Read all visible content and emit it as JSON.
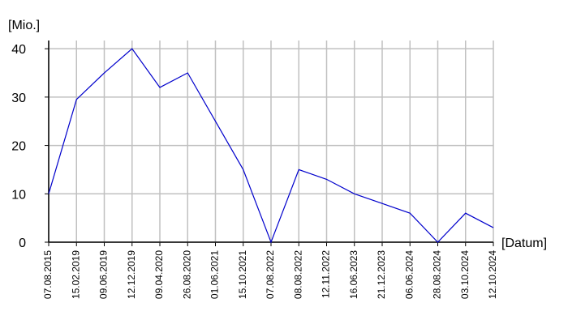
{
  "chart_data": {
    "type": "line",
    "y_label": "[Mio.]",
    "x_label": "[Datum]",
    "categories": [
      "07.08.2015",
      "15.02.2019",
      "09.06.2019",
      "12.12.2019",
      "09.04.2020",
      "26.08.2020",
      "01.06.2021",
      "15.10.2021",
      "07.08.2022",
      "08.08.2022",
      "12.11.2022",
      "16.06.2023",
      "21.12.2023",
      "06.06.2024",
      "28.08.2024",
      "03.10.2024",
      "12.10.2024"
    ],
    "series": [
      {
        "color": "#0000cc",
        "values": [
          10,
          29.5,
          35,
          40,
          32,
          35,
          25,
          15,
          0,
          15,
          13,
          10,
          8,
          6,
          0,
          6,
          3
        ]
      }
    ],
    "ylim": [
      0,
      41.7
    ],
    "yticks": [
      0,
      10,
      20,
      30,
      40
    ],
    "grid": true
  }
}
